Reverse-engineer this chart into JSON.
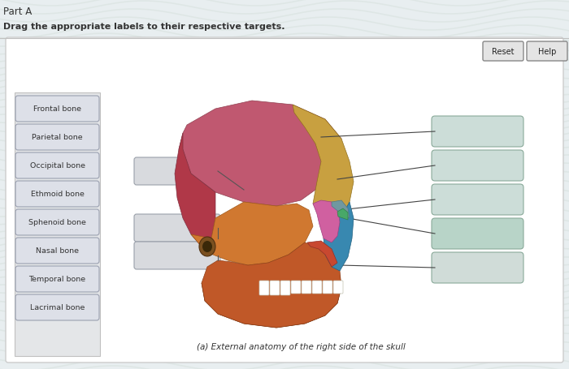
{
  "title1": "Part A",
  "title2": "Drag the appropriate labels to their respective targets.",
  "reset_btn": "Reset",
  "help_btn": "Help",
  "left_labels": [
    "Frontal bone",
    "Parietal bone",
    "Occipital bone",
    "Ethmoid bone",
    "Sphenoid bone",
    "Nasal bone",
    "Temporal bone",
    "Lacrimal bone"
  ],
  "caption": "(a) External anatomy of the right side of the skull",
  "bg_color": "#e8eef0",
  "panel_color": "#f0f2f4",
  "left_panel_color": "#e4e6e8",
  "label_box_color": "#dde0e8",
  "label_box_edge": "#9aa0b0",
  "mid_box_color": "#d8dade",
  "mid_box_edge": "#9aa0aa",
  "right_box_colors": [
    "#ccddd8",
    "#ccddd8",
    "#ccddd8",
    "#b8d4c8",
    "#d0dcd8"
  ],
  "right_box_edge": "#8aaa9a",
  "skull_parietal": "#c05870",
  "skull_frontal": "#c8a040",
  "skull_occipital": "#b03848",
  "skull_temporal": "#d07830",
  "skull_sphenoid": "#3888b0",
  "skull_ethmoid": "#48a868",
  "skull_mandible": "#c05828",
  "skull_maxilla": "#c84830",
  "skull_zygomatic": "#b86838",
  "skull_lacrimal": "#7098a0"
}
